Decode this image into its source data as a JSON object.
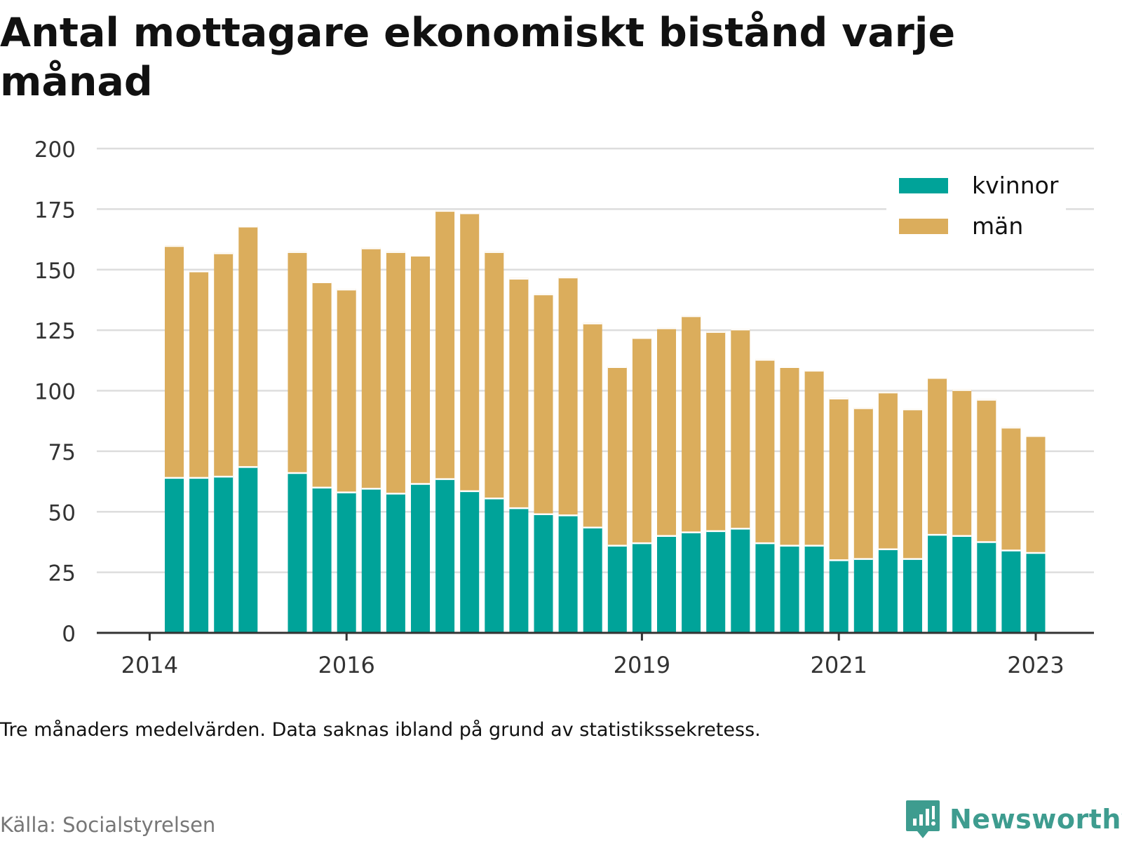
{
  "title": "Antal mottagare ekonomiskt bistånd varje månad",
  "note": "Tre månaders medelvärden. Data saknas ibland på grund av statistikssekretess.",
  "source": "Källa: Socialstyrelsen",
  "brand": "Newsworthy",
  "colors": {
    "kvinnor": "#00a399",
    "man": "#dbad5c",
    "grid": "#dddddd",
    "axis": "#333333",
    "brand": "#3e9c8f"
  },
  "chart_data": {
    "type": "bar",
    "stacked": true,
    "title": "Antal mottagare ekonomiskt bistånd varje månad",
    "xlabel": "",
    "ylabel": "",
    "ylim": [
      0,
      200
    ],
    "yticks": [
      "0",
      "25",
      "50",
      "75",
      "100",
      "125",
      "150",
      "175",
      "200"
    ],
    "grid": true,
    "legend_position": "top-right",
    "x_tick_labels": [
      {
        "label": "2014",
        "at": "2014-01"
      },
      {
        "label": "2016",
        "at": "2016-01"
      },
      {
        "label": "2019",
        "at": "2019-01"
      },
      {
        "label": "2021",
        "at": "2021-01"
      },
      {
        "label": "2023",
        "at": "2023-01"
      }
    ],
    "categories": [
      "2014-04",
      "2014-07",
      "2014-10",
      "2015-01",
      "2015-07",
      "2015-10",
      "2016-01",
      "2016-04",
      "2016-07",
      "2016-10",
      "2017-01",
      "2017-04",
      "2017-07",
      "2017-10",
      "2018-01",
      "2018-04",
      "2018-07",
      "2018-10",
      "2019-01",
      "2019-04",
      "2019-07",
      "2019-10",
      "2020-01",
      "2020-04",
      "2020-07",
      "2020-10",
      "2021-01",
      "2021-04",
      "2021-07",
      "2021-10",
      "2022-01",
      "2022-04",
      "2022-07",
      "2022-10",
      "2023-01"
    ],
    "series": [
      {
        "name": "kvinnor",
        "values": [
          64,
          64,
          64.5,
          68.5,
          66,
          60,
          58,
          59.5,
          57.5,
          61.5,
          63.5,
          58.5,
          55.5,
          51.5,
          49,
          48.5,
          43.5,
          36,
          37,
          40,
          41.5,
          42,
          43,
          37,
          36,
          36,
          30,
          30.5,
          34.5,
          30.5,
          40.5,
          40,
          37.5,
          34,
          33
        ]
      },
      {
        "name": "män",
        "values": [
          96,
          85.5,
          92.5,
          99.5,
          91.5,
          85,
          84,
          99.5,
          100,
          94.5,
          111,
          115,
          102,
          95,
          91,
          98.5,
          84.5,
          74,
          85,
          86,
          89.5,
          82.5,
          82.5,
          76,
          74,
          72.5,
          67,
          62.5,
          65,
          62,
          65,
          60.5,
          59,
          51,
          48.5
        ]
      }
    ]
  }
}
